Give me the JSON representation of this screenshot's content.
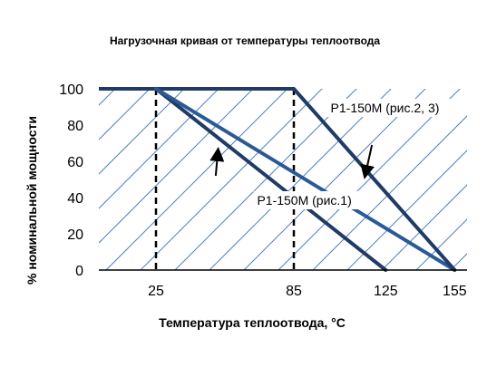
{
  "chart_data": {
    "type": "line",
    "title": "Нагрузочная кривая от температуры теплоотвода",
    "xlabel": "Температура теплоотвода, °С",
    "ylabel": "% номинальной мощности",
    "xlim": [
      0,
      160
    ],
    "ylim": [
      0,
      100
    ],
    "x_ticks": [
      "25",
      "85",
      "125",
      "155"
    ],
    "x_tick_values": [
      25,
      85,
      125,
      155
    ],
    "y_ticks": [
      "0",
      "20",
      "40",
      "60",
      "80",
      "100"
    ],
    "y_tick_values": [
      0,
      20,
      40,
      60,
      80,
      100
    ],
    "series": [
      {
        "points": [
          [
            25,
            100
          ],
          [
            125,
            0
          ]
        ],
        "color": "#1f3b66"
      },
      {
        "points": [
          [
            25,
            100
          ],
          [
            155,
            0
          ]
        ],
        "color": "#2a5a96"
      },
      {
        "points": [
          [
            85,
            100
          ],
          [
            155,
            0
          ]
        ],
        "color": "#1f3b66"
      }
    ],
    "reference_lines_x": [
      25,
      85
    ],
    "annotations": [
      {
        "text": "P1-150M (рис.2, 3)",
        "label_at": [
          101,
          87
        ],
        "arrow_from": [
          119,
          69
        ],
        "arrow_to": [
          116,
          52
        ]
      },
      {
        "text": "P1-150M (рис.1)",
        "label_at": [
          69,
          36
        ],
        "arrow_from": [
          51,
          52
        ],
        "arrow_to": [
          52,
          66
        ]
      }
    ],
    "hatch_color": "#4f81bd",
    "grid": false
  }
}
